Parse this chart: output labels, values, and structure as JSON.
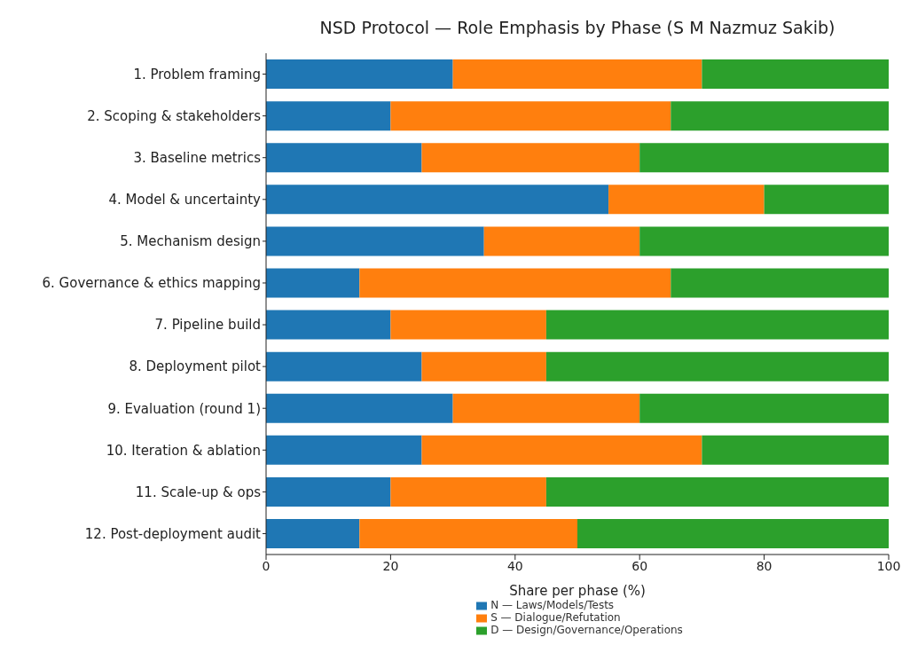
{
  "chart_data": {
    "type": "bar",
    "orientation": "horizontal",
    "stacked": true,
    "title": "NSD Protocol — Role Emphasis by Phase (S M Nazmuz Sakib)",
    "xlabel": "Share per phase (%)",
    "categories": [
      "1. Problem framing",
      "2. Scoping & stakeholders",
      "3. Baseline metrics",
      "4. Model & uncertainty",
      "5. Mechanism design",
      "6. Governance & ethics mapping",
      "7. Pipeline build",
      "8. Deployment pilot",
      "9. Evaluation (round 1)",
      "10. Iteration & ablation",
      "11. Scale-up & ops",
      "12. Post-deployment audit"
    ],
    "series": [
      {
        "name": "N — Laws/Models/Tests",
        "color": "#1f77b4",
        "values": [
          30,
          20,
          25,
          55,
          35,
          15,
          20,
          25,
          30,
          25,
          20,
          15
        ]
      },
      {
        "name": "S — Dialogue/Refutation",
        "color": "#ff7f0e",
        "values": [
          40,
          45,
          35,
          25,
          25,
          50,
          25,
          20,
          30,
          45,
          25,
          35
        ]
      },
      {
        "name": "D — Design/Governance/Operations",
        "color": "#2ca02c",
        "values": [
          30,
          35,
          40,
          20,
          40,
          35,
          55,
          55,
          40,
          30,
          55,
          50
        ]
      }
    ],
    "xlim": [
      0,
      100
    ],
    "xticks": [
      0,
      20,
      40,
      60,
      80,
      100
    ],
    "grid": false,
    "legend": "bottom"
  }
}
